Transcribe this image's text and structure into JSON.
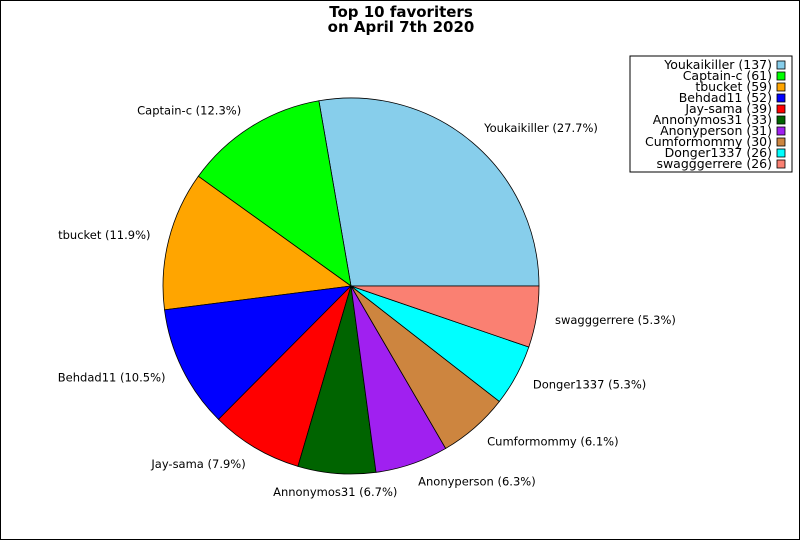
{
  "chart_data": {
    "type": "pie",
    "title_lines": [
      "Top 10 favoriters",
      "on April 7th 2020"
    ],
    "slices": [
      {
        "name": "Youkaikiller",
        "count": 137,
        "percent": 27.7,
        "label": "Youkaikiller (27.7%)",
        "legend": "Youkaikiller (137)",
        "color": "#87ceeb"
      },
      {
        "name": "Captain-c",
        "count": 61,
        "percent": 12.3,
        "label": "Captain-c (12.3%)",
        "legend": "Captain-c (61)",
        "color": "#00ff00"
      },
      {
        "name": "tbucket",
        "count": 59,
        "percent": 11.9,
        "label": "tbucket (11.9%)",
        "legend": "tbucket (59)",
        "color": "#ffa500"
      },
      {
        "name": "Behdad11",
        "count": 52,
        "percent": 10.5,
        "label": "Behdad11 (10.5%)",
        "legend": "Behdad11 (52)",
        "color": "#0000ff"
      },
      {
        "name": "Jay-sama",
        "count": 39,
        "percent": 7.9,
        "label": "Jay-sama (7.9%)",
        "legend": "Jay-sama (39)",
        "color": "#ff0000"
      },
      {
        "name": "Annonymos31",
        "count": 33,
        "percent": 6.7,
        "label": "Annonymos31 (6.7%)",
        "legend": "Annonymos31 (33)",
        "color": "#006400"
      },
      {
        "name": "Anonyperson",
        "count": 31,
        "percent": 6.3,
        "label": "Anonyperson (6.3%)",
        "legend": "Anonyperson (31)",
        "color": "#a020f0"
      },
      {
        "name": "Cumformommy",
        "count": 30,
        "percent": 6.1,
        "label": "Cumformommy (6.1%)",
        "legend": "Cumformommy (30)",
        "color": "#cd853f"
      },
      {
        "name": "Donger1337",
        "count": 26,
        "percent": 5.3,
        "label": "Donger1337 (5.3%)",
        "legend": "Donger1337 (26)",
        "color": "#00ffff"
      },
      {
        "name": "swagggerrere",
        "count": 26,
        "percent": 5.3,
        "label": "swagggerrere (5.3%)",
        "legend": "swagggerrere (26)",
        "color": "#fa8072"
      }
    ],
    "start_angle_deg": 0,
    "direction": "counterclockwise",
    "legend_position": "top-right"
  }
}
